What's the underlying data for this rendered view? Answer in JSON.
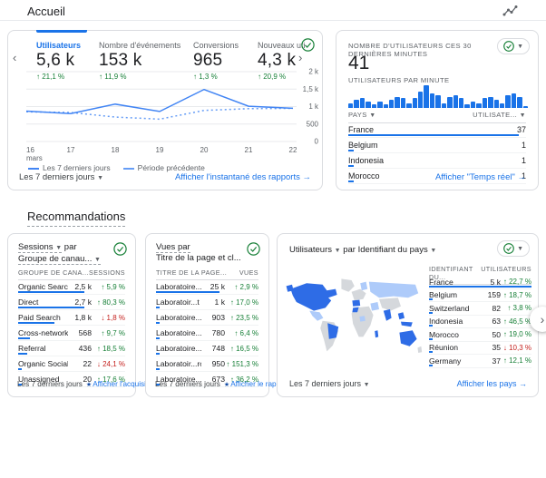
{
  "colors": {
    "accent_blue": "#1a73e8",
    "chart_line_blue": "#4285f4",
    "chart_line_dashed": "#669df6",
    "positive_green": "#188038",
    "negative_red": "#c5221f",
    "card_border": "#dadce0",
    "map_dark_blue": "#2e6ce6",
    "map_light_blue": "#aecbfa",
    "map_gray": "#d5d8dc"
  },
  "header": {
    "title": "Accueil"
  },
  "overview_card": {
    "metrics": [
      {
        "label": "Utilisateurs",
        "value": "5,6 k",
        "delta": "21,1 %",
        "dir": "up",
        "selected": true
      },
      {
        "label": "Nombre d'événements",
        "value": "153 k",
        "delta": "11,9 %",
        "dir": "up",
        "selected": false
      },
      {
        "label": "Conversions",
        "value": "965",
        "delta": "1,3 %",
        "dir": "up",
        "selected": false
      },
      {
        "label": "Nouveaux uti",
        "value": "4,3 k",
        "delta": "20,9 %",
        "dir": "up",
        "selected": false
      }
    ],
    "chart_data": {
      "type": "line",
      "x": [
        "16 mars",
        "17",
        "18",
        "19",
        "20",
        "21",
        "22"
      ],
      "x_tick_labels": [
        "16",
        "17",
        "18",
        "19",
        "20",
        "21",
        "22"
      ],
      "x_first_sub": "mars",
      "series": [
        {
          "name": "Les 7 derniers jours",
          "style": "solid",
          "values": [
            870,
            800,
            1070,
            860,
            1490,
            1010,
            950
          ]
        },
        {
          "name": "Période précédente",
          "style": "dashed",
          "values": [
            850,
            830,
            700,
            640,
            890,
            940,
            950
          ]
        }
      ],
      "ylim": [
        0,
        2000
      ],
      "ytick_values": [
        0,
        500,
        1000,
        1500,
        2000
      ],
      "ytick_labels": [
        "0",
        "500",
        "1 k",
        "1,5 k",
        "2 k"
      ],
      "legend_position": "bottom-left",
      "grid": true
    },
    "legend": [
      "Les 7 derniers jours",
      "Période précédente"
    ],
    "range_label": "Les 7 derniers jours",
    "link_label": "Afficher l'instantané des rapports"
  },
  "realtime_card": {
    "title": "NOMBRE D'UTILISATEURS CES 30 DERNIÈRES MINUTES",
    "value": "41",
    "subtitle": "UTILISATEURS PAR MINUTE",
    "chart_data": {
      "type": "bar",
      "title": "Utilisateurs par minute",
      "values": [
        3,
        5,
        6,
        4,
        2,
        4,
        2,
        5,
        7,
        6,
        3,
        6,
        10,
        14,
        9,
        8,
        3,
        7,
        8,
        6,
        2,
        4,
        3,
        6,
        7,
        5,
        3,
        8,
        9,
        7,
        1
      ]
    },
    "col1": "PAYS",
    "col2": "UTILISATE...",
    "rows": [
      {
        "label": "France",
        "value": "37",
        "bar": 100
      },
      {
        "label": "Belgium",
        "value": "1",
        "bar": 4
      },
      {
        "label": "Indonesia",
        "value": "1",
        "bar": 4
      },
      {
        "label": "Morocco",
        "value": "1",
        "bar": 4
      }
    ],
    "link_label": "Afficher \"Temps réel\""
  },
  "recommendations": {
    "title": "Recommandations"
  },
  "sessions_card": {
    "metric": "Sessions",
    "connector": "par",
    "dimension": "Groupe de canau...",
    "col1": "GROUPE DE CANA...",
    "col2": "SESSIONS",
    "rows": [
      {
        "label": "Organic Search",
        "value": "2,5 k",
        "delta": "5,9 %",
        "dir": "up",
        "bar": 93
      },
      {
        "label": "Direct",
        "value": "2,7 k",
        "delta": "80,3 %",
        "dir": "up",
        "bar": 100
      },
      {
        "label": "Paid Search",
        "value": "1,8 k",
        "delta": "1,8 %",
        "dir": "down",
        "bar": 67
      },
      {
        "label": "Cross-network",
        "value": "568",
        "delta": "9,7 %",
        "dir": "up",
        "bar": 21
      },
      {
        "label": "Referral",
        "value": "436",
        "delta": "18,5 %",
        "dir": "up",
        "bar": 16
      },
      {
        "label": "Organic Social",
        "value": "22",
        "delta": "24,1 %",
        "dir": "down",
        "bar": 3
      },
      {
        "label": "Unassigned",
        "value": "20",
        "delta": "17,6 %",
        "dir": "up",
        "bar": 3
      }
    ],
    "range_label": "Les 7 derniers jours",
    "link_label": "Afficher l'acquisi..."
  },
  "views_card": {
    "line1": "Vues par",
    "line2": "Titre de la page et cl...",
    "col1": "TITRE DE LA PAGE...",
    "col2": "VUES",
    "rows": [
      {
        "label": "Laboratoire...te officiel",
        "value": "25 k",
        "delta": "2,9 %",
        "dir": "up",
        "bar": 100
      },
      {
        "label": "Laboratoir...t mobilité",
        "value": "1 k",
        "delta": "17,0 %",
        "dir": "up",
        "bar": 5
      },
      {
        "label": "Laboratoire...é et tonus",
        "value": "903",
        "delta": "23,5 %",
        "dir": "up",
        "bar": 5
      },
      {
        "label": "Laboratoire... bien être",
        "value": "780",
        "delta": "6,4 %",
        "dir": "up",
        "bar": 4
      },
      {
        "label": "Laboratoire...otre ligne",
        "value": "748",
        "delta": "16,5 %",
        "dir": "up",
        "bar": 4
      },
      {
        "label": "Laboratoir...romotions",
        "value": "950",
        "delta": "151,3 %",
        "dir": "up",
        "bar": 5
      },
      {
        "label": "Laboratoire...rculatoire",
        "value": "673",
        "delta": "36,2 %",
        "dir": "up",
        "bar": 4
      }
    ],
    "range_label": "Les 7 derniers jours",
    "link_label": "Afficher le rappo..."
  },
  "countries_card": {
    "metric": "Utilisateurs",
    "connector": "par",
    "dimension": "Identifiant du pays",
    "col1": "IDENTIFIANT DU...",
    "col2": "UTILISATEURS",
    "rows": [
      {
        "label": "France",
        "value": "5 k",
        "delta": "22,7 %",
        "dir": "up",
        "bar": 100
      },
      {
        "label": "Belgium",
        "value": "159",
        "delta": "18,7 %",
        "dir": "up",
        "bar": 4
      },
      {
        "label": "Switzerland",
        "value": "82",
        "delta": "3,8 %",
        "dir": "up",
        "bar": 3
      },
      {
        "label": "Indonesia",
        "value": "63",
        "delta": "46,5 %",
        "dir": "up",
        "bar": 3
      },
      {
        "label": "Morocco",
        "value": "50",
        "delta": "19,0 %",
        "dir": "up",
        "bar": 3
      },
      {
        "label": "Réunion",
        "value": "35",
        "delta": "10,3 %",
        "dir": "down",
        "bar": 2
      },
      {
        "label": "Germany",
        "value": "37",
        "delta": "12,1 %",
        "dir": "up",
        "bar": 2
      }
    ],
    "range_label": "Les 7 derniers jours",
    "link_label": "Afficher les pays"
  }
}
